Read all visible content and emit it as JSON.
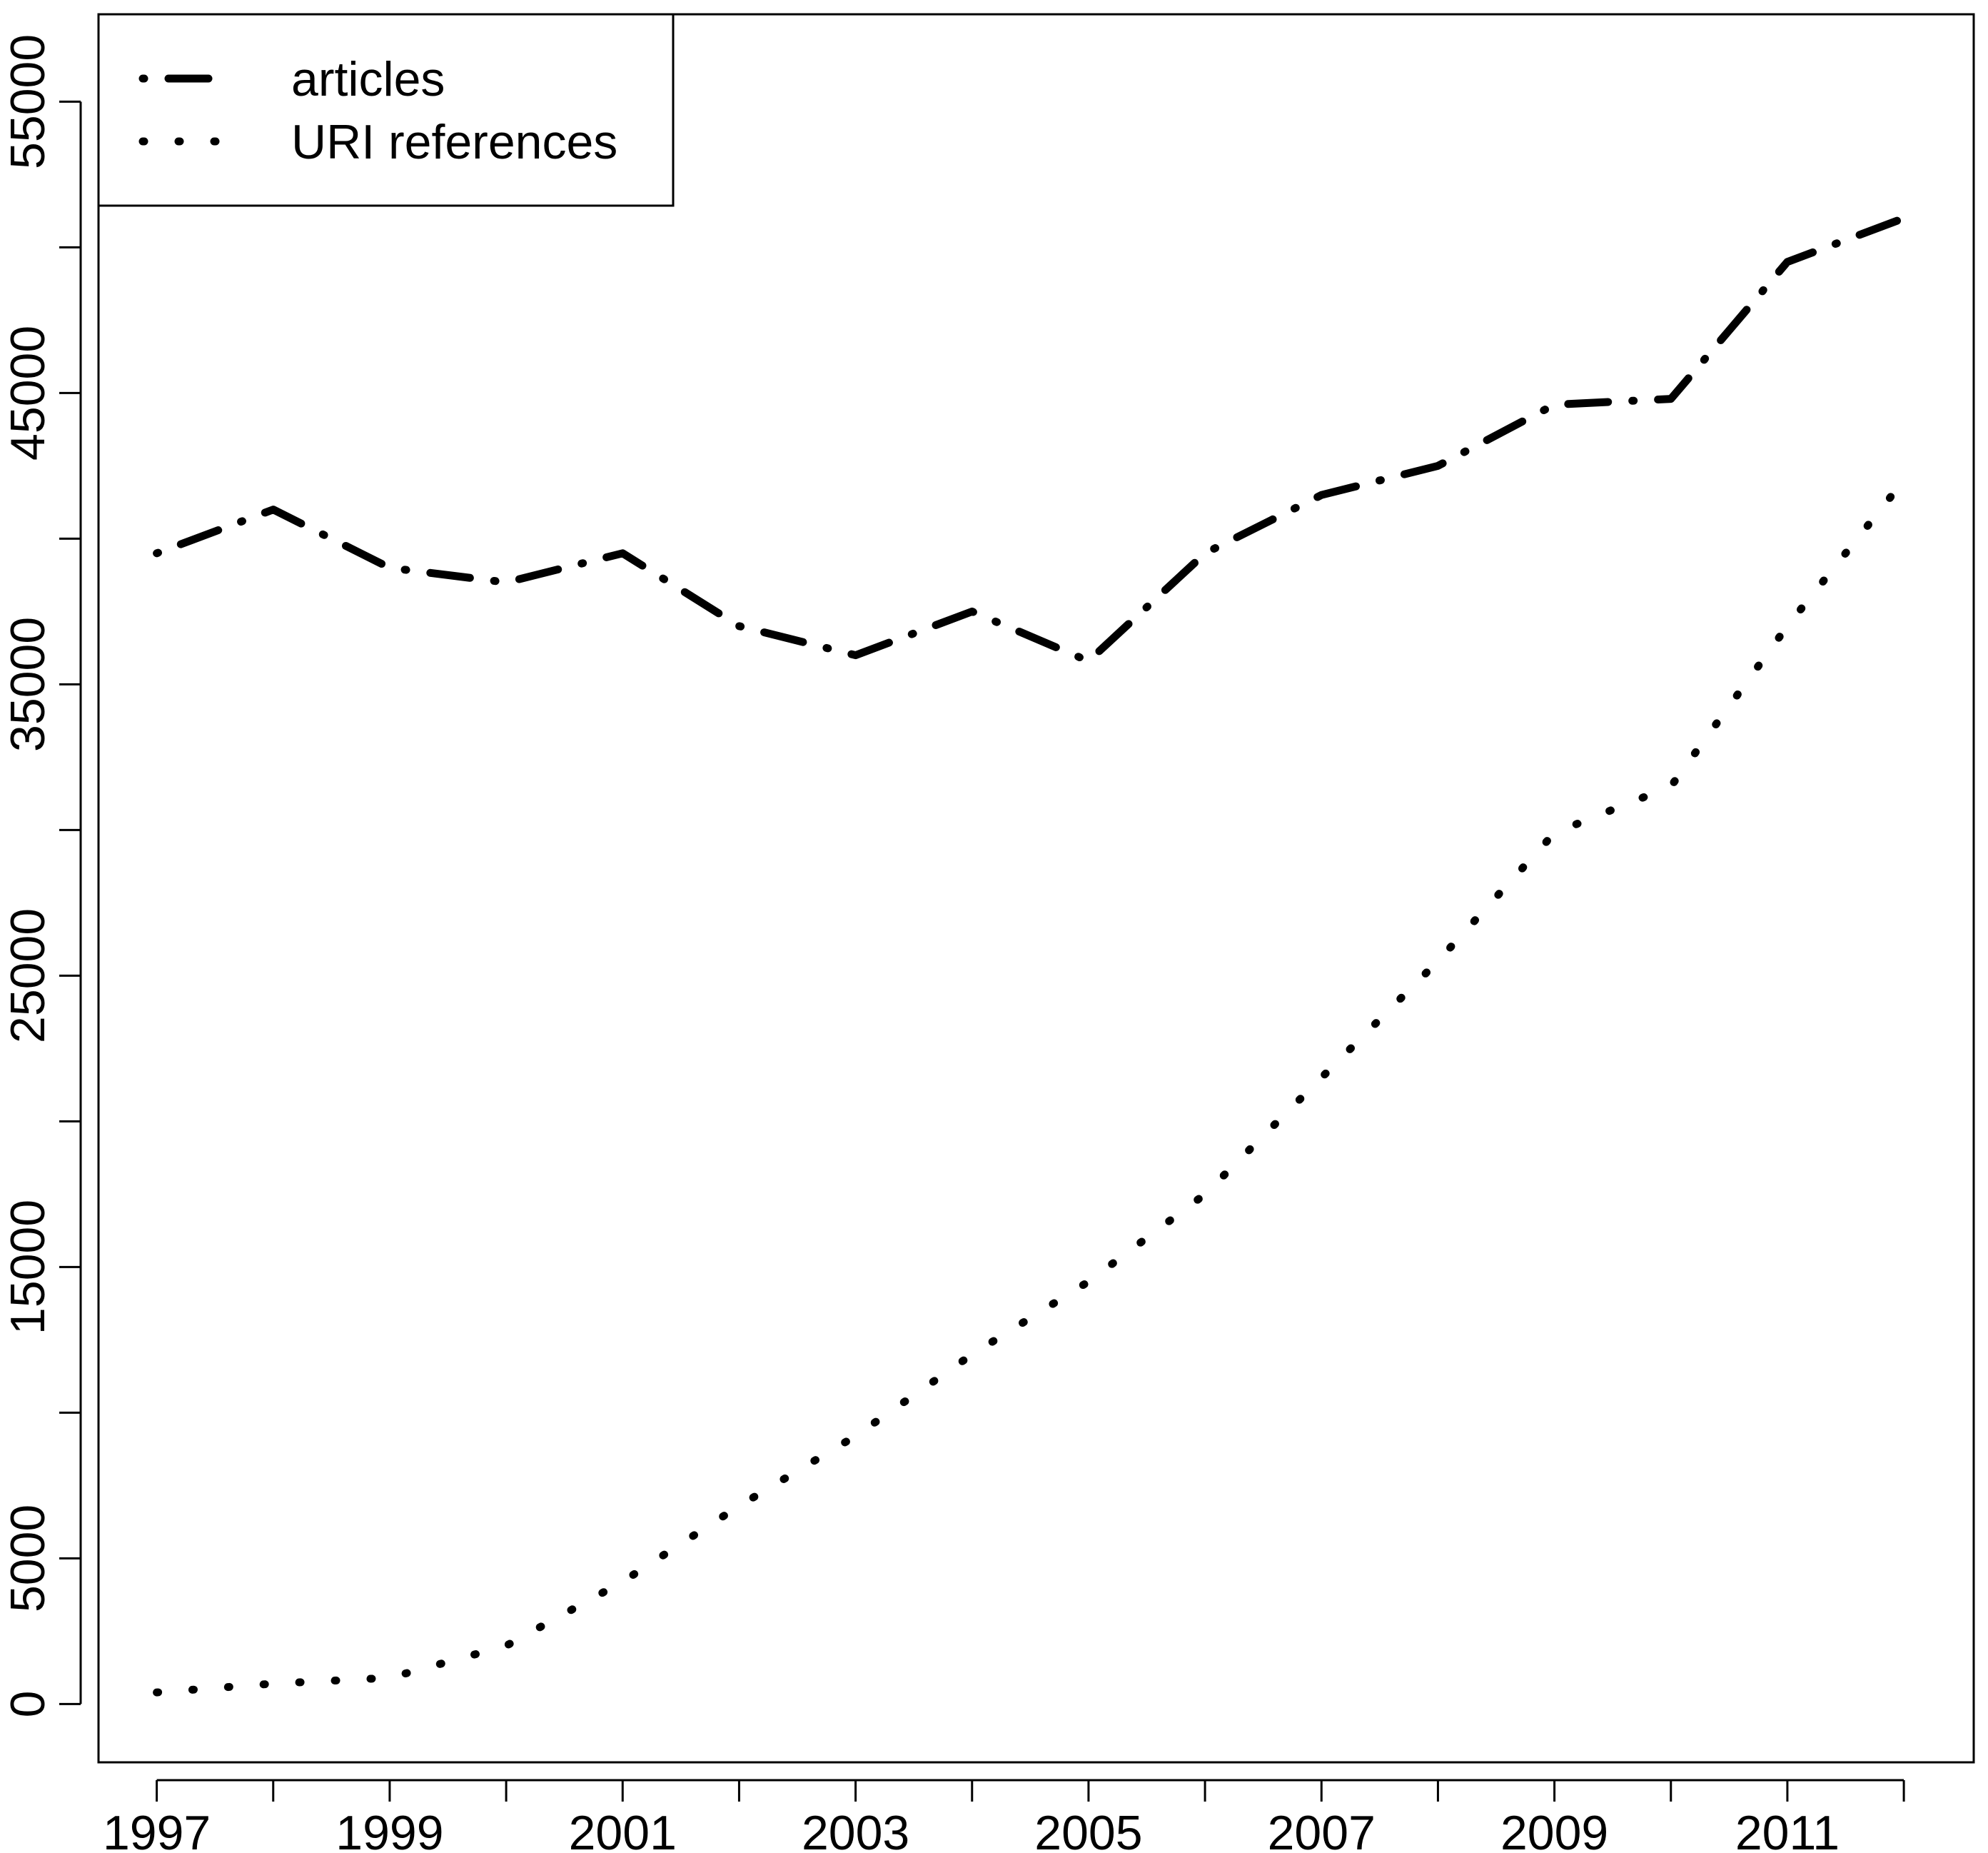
{
  "chart_data": {
    "type": "line",
    "title": "",
    "xlabel": "",
    "ylabel": "",
    "x": [
      1997,
      1998,
      1999,
      2000,
      2001,
      2002,
      2003,
      2004,
      2005,
      2006,
      2007,
      2008,
      2009,
      2010,
      2011,
      2012
    ],
    "xlim": [
      1996.5,
      2012.6
    ],
    "ylim": [
      -2000,
      58000
    ],
    "x_ticks": [
      1997,
      1998,
      1999,
      2000,
      2001,
      2002,
      2003,
      2004,
      2005,
      2006,
      2007,
      2008,
      2009,
      2010,
      2011,
      2012
    ],
    "x_tick_labels": [
      "1997",
      "1999",
      "2001",
      "2003",
      "2005",
      "2007",
      "2009",
      "2011"
    ],
    "y_ticks": [
      0,
      5000,
      10000,
      15000,
      20000,
      25000,
      30000,
      35000,
      40000,
      45000,
      50000,
      55000
    ],
    "y_tick_labels": [
      "0",
      "5000",
      "15000",
      "25000",
      "35000",
      "45000",
      "55000"
    ],
    "grid": false,
    "legend": {
      "position": "top-left"
    },
    "series": [
      {
        "name": "articles",
        "style": "dotdash",
        "color": "#000000",
        "values": [
          39500,
          41000,
          39000,
          38500,
          39500,
          37000,
          36000,
          37500,
          35800,
          39500,
          41500,
          42500,
          44600,
          44800,
          49500,
          51000
        ]
      },
      {
        "name": "URI references",
        "style": "dotted",
        "color": "#000000",
        "values": [
          400,
          700,
          900,
          2000,
          4200,
          6800,
          9200,
          12000,
          14500,
          17500,
          21500,
          25500,
          29900,
          31500,
          37000,
          42000
        ]
      }
    ]
  }
}
